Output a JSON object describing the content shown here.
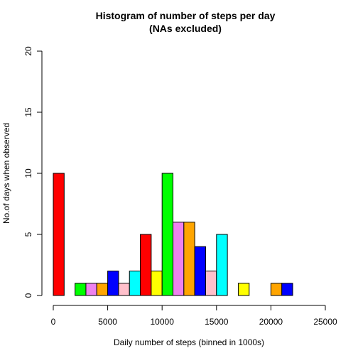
{
  "chart_data": {
    "type": "bar",
    "title": "Histogram of number of steps per day",
    "subtitle": "(NAs excluded)",
    "xlabel": "Daily number of steps (binned in 1000s)",
    "ylabel": "No.of days when observed",
    "xlim": [
      0,
      25000
    ],
    "ylim": [
      0,
      20
    ],
    "x_ticks": [
      0,
      5000,
      10000,
      15000,
      20000,
      25000
    ],
    "y_ticks": [
      0,
      5,
      10,
      15,
      20
    ],
    "bin_width": 1000,
    "grid": false,
    "bins": [
      {
        "start": 0,
        "end": 1000,
        "count": 10,
        "color": "#ff0000"
      },
      {
        "start": 1000,
        "end": 2000,
        "count": 0,
        "color": "#ffff00"
      },
      {
        "start": 2000,
        "end": 3000,
        "count": 1,
        "color": "#00ff00"
      },
      {
        "start": 3000,
        "end": 4000,
        "count": 1,
        "color": "#ee82ee"
      },
      {
        "start": 4000,
        "end": 5000,
        "count": 1,
        "color": "#ffa500"
      },
      {
        "start": 5000,
        "end": 6000,
        "count": 2,
        "color": "#0000ff"
      },
      {
        "start": 6000,
        "end": 7000,
        "count": 1,
        "color": "#ffc0cb"
      },
      {
        "start": 7000,
        "end": 8000,
        "count": 2,
        "color": "#00ffff"
      },
      {
        "start": 8000,
        "end": 9000,
        "count": 5,
        "color": "#ff0000"
      },
      {
        "start": 9000,
        "end": 10000,
        "count": 2,
        "color": "#ffff00"
      },
      {
        "start": 10000,
        "end": 11000,
        "count": 10,
        "color": "#00ff00"
      },
      {
        "start": 11000,
        "end": 12000,
        "count": 6,
        "color": "#ee82ee"
      },
      {
        "start": 12000,
        "end": 13000,
        "count": 6,
        "color": "#ffa500"
      },
      {
        "start": 13000,
        "end": 14000,
        "count": 4,
        "color": "#0000ff"
      },
      {
        "start": 14000,
        "end": 15000,
        "count": 2,
        "color": "#ffc0cb"
      },
      {
        "start": 15000,
        "end": 16000,
        "count": 5,
        "color": "#00ffff"
      },
      {
        "start": 16000,
        "end": 17000,
        "count": 0,
        "color": "#ff0000"
      },
      {
        "start": 17000,
        "end": 18000,
        "count": 1,
        "color": "#ffff00"
      },
      {
        "start": 18000,
        "end": 19000,
        "count": 0,
        "color": "#00ff00"
      },
      {
        "start": 19000,
        "end": 20000,
        "count": 0,
        "color": "#ee82ee"
      },
      {
        "start": 20000,
        "end": 21000,
        "count": 1,
        "color": "#ffa500"
      },
      {
        "start": 21000,
        "end": 22000,
        "count": 1,
        "color": "#0000ff"
      }
    ]
  }
}
